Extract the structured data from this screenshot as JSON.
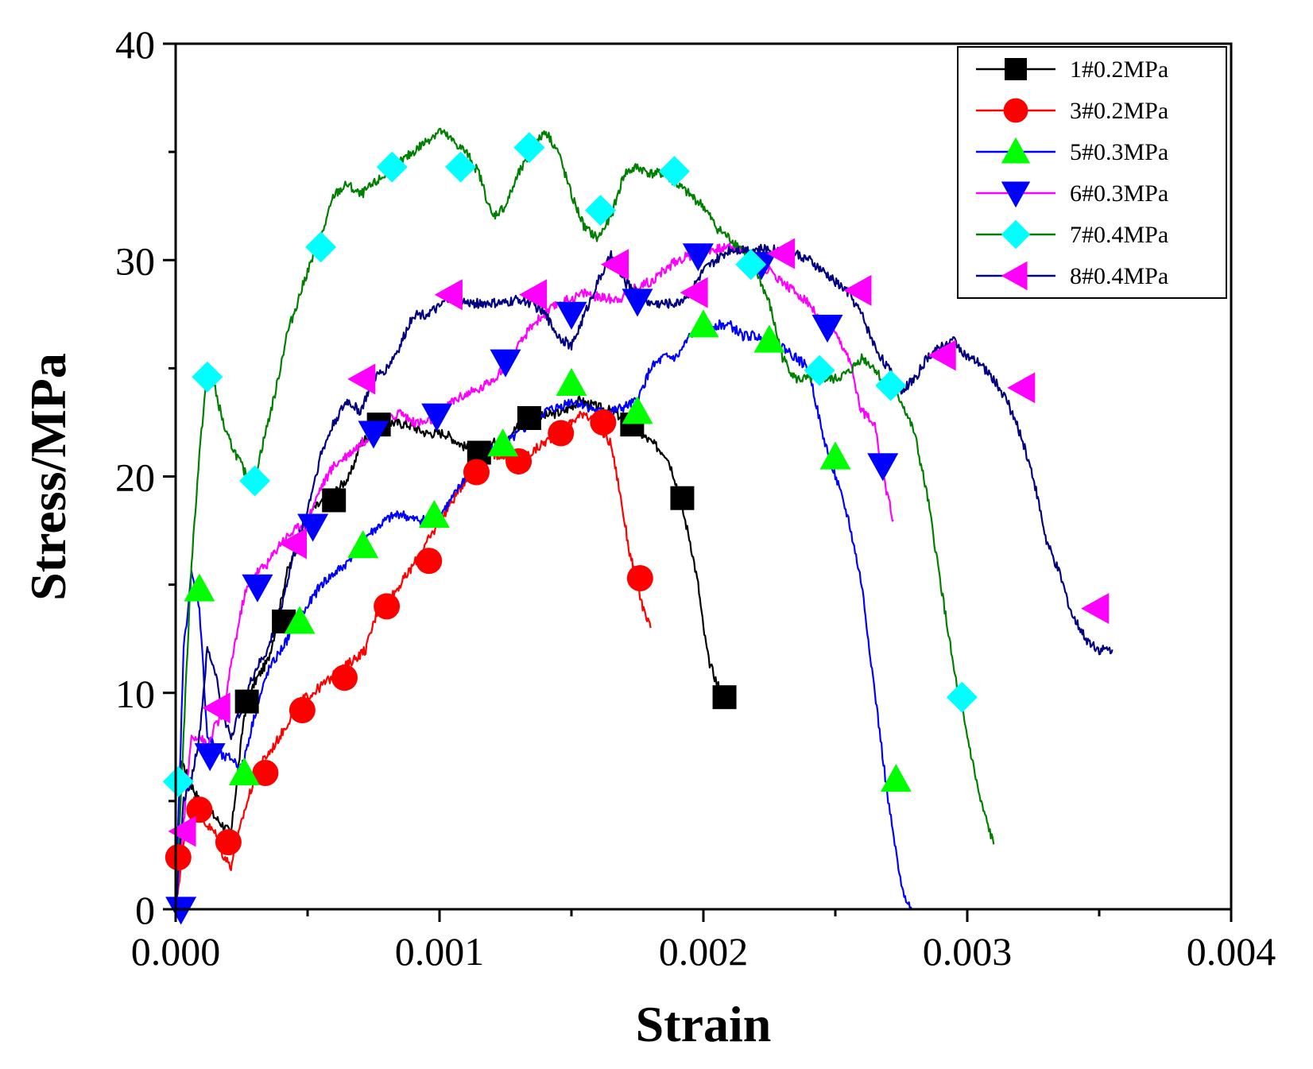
{
  "chart_data": {
    "type": "line",
    "title": "",
    "xlabel": "Strain",
    "ylabel": "Stress/MPa",
    "xlim": [
      0,
      0.004
    ],
    "ylim": [
      0,
      40
    ],
    "xticks": [
      0,
      0.001,
      0.002,
      0.003,
      0.004
    ],
    "xtick_labels": [
      "0.000",
      "0.001",
      "0.002",
      "0.003",
      "0.004"
    ],
    "yticks": [
      0,
      10,
      20,
      30,
      40
    ],
    "ytick_labels": [
      "0",
      "10",
      "20",
      "30",
      "40"
    ],
    "grid": false,
    "legend_position": "top-right",
    "series": [
      {
        "name": "1#0.2MPa",
        "color": "#000000",
        "marker": "square",
        "x": [
          0,
          2e-05,
          5e-05,
          9e-05,
          0.00013,
          0.00017,
          0.00021,
          0.00026,
          0.0003,
          0.00035,
          0.00038,
          0.00042,
          0.00047,
          0.00052,
          0.00058,
          0.00062,
          0.00066,
          0.0007,
          0.00074,
          0.00078,
          0.00082,
          0.00088,
          0.00095,
          0.00102,
          0.00108,
          0.00114,
          0.0012,
          0.00127,
          0.00133,
          0.0014,
          0.00147,
          0.00153,
          0.0016,
          0.00166,
          0.00171,
          0.00176,
          0.00181,
          0.00186,
          0.00189,
          0.00192,
          0.00195,
          0.00198,
          0.002,
          0.00202,
          0.00205,
          0.00207,
          0.00209
        ],
        "y": [
          0,
          7,
          6,
          5,
          4.5,
          4,
          3.5,
          9,
          10.5,
          11.5,
          13,
          15.5,
          17,
          18.5,
          19,
          19.5,
          20,
          21.5,
          22,
          22.3,
          22.5,
          22.4,
          22,
          22,
          21.5,
          21,
          21.5,
          22,
          22.7,
          22.8,
          23,
          23.5,
          23.2,
          23,
          22.5,
          22,
          21.5,
          21,
          20,
          18.5,
          17,
          15,
          13,
          11.5,
          10.5,
          10,
          9.5
        ],
        "marker_x": [
          0.00027,
          0.00041,
          0.0006,
          0.00077,
          0.00115,
          0.00134,
          0.00173,
          0.00192,
          0.00208
        ],
        "marker_y": [
          9.6,
          13.3,
          18.9,
          22.4,
          21.1,
          22.7,
          22.4,
          19.0,
          9.8
        ]
      },
      {
        "name": "3#0.2MPa",
        "color": "#ff0000",
        "marker": "circle",
        "x": [
          0,
          3e-05,
          7e-05,
          0.00011,
          0.00015,
          0.00018,
          0.00021,
          0.00026,
          0.00031,
          0.00037,
          0.00042,
          0.00046,
          0.00052,
          0.00057,
          0.00062,
          0.00067,
          0.00072,
          0.00077,
          0.00082,
          0.00088,
          0.00093,
          0.00098,
          0.00103,
          0.00108,
          0.00113,
          0.00118,
          0.00124,
          0.00129,
          0.00134,
          0.00139,
          0.00145,
          0.0015,
          0.00155,
          0.0016,
          0.00165,
          0.00168,
          0.0017,
          0.00172,
          0.00174,
          0.00176,
          0.00178,
          0.0018
        ],
        "y": [
          0,
          3,
          5,
          4,
          3.5,
          2.5,
          2,
          4.5,
          6.5,
          7.5,
          8.5,
          9.5,
          10,
          10.5,
          11,
          11.5,
          12,
          14,
          14.5,
          15.5,
          16.5,
          17.5,
          18.5,
          19.5,
          20.5,
          21,
          21,
          20.7,
          21,
          21.5,
          22,
          22.5,
          23,
          22.3,
          21.5,
          19.5,
          18,
          16.5,
          15.5,
          14.5,
          13.5,
          13
        ],
        "marker_x": [
          1e-05,
          9e-05,
          0.0002,
          0.00034,
          0.00048,
          0.00064,
          0.0008,
          0.00096,
          0.00114,
          0.0013,
          0.00146,
          0.00162,
          0.00176
        ],
        "marker_y": [
          2.4,
          4.6,
          3.1,
          6.3,
          9.2,
          10.7,
          14.0,
          16.1,
          20.2,
          20.7,
          22.0,
          22.5,
          15.3
        ]
      },
      {
        "name": "5#0.3MPa",
        "color": "#0000ff",
        "marker": "triangle-up",
        "x": [
          0,
          3e-05,
          6e-05,
          9e-05,
          0.00012,
          0.00015,
          0.00018,
          0.00021,
          0.00025,
          0.0003,
          0.00035,
          0.0004,
          0.00045,
          0.0005,
          0.00055,
          0.0006,
          0.00065,
          0.0007,
          0.00075,
          0.0008,
          0.00085,
          0.0009,
          0.00095,
          0.001,
          0.00105,
          0.0011,
          0.00115,
          0.0012,
          0.00125,
          0.0013,
          0.00135,
          0.0014,
          0.00145,
          0.0015,
          0.00155,
          0.0016,
          0.00165,
          0.0017,
          0.00175,
          0.0018,
          0.00185,
          0.0019,
          0.00195,
          0.002,
          0.00205,
          0.0021,
          0.00215,
          0.0022,
          0.00225,
          0.0023,
          0.00235,
          0.0024,
          0.00245,
          0.0025,
          0.00255,
          0.0026,
          0.00265,
          0.0027,
          0.00275,
          0.00279
        ],
        "y": [
          0,
          12,
          15.5,
          14,
          8,
          7.5,
          7,
          7,
          6.5,
          9,
          11,
          12,
          13,
          14,
          15,
          15.5,
          16,
          17,
          17.5,
          18,
          18.3,
          18,
          18,
          18.2,
          19,
          20,
          21,
          21.5,
          21.5,
          22,
          22.5,
          23,
          23.2,
          23.5,
          23.3,
          23,
          23,
          23.2,
          23.5,
          25,
          25.5,
          25.5,
          26.5,
          27,
          27,
          27,
          26.5,
          26.5,
          26,
          26,
          25.5,
          25,
          22,
          20,
          18,
          15,
          10,
          5,
          1,
          0
        ],
        "marker_x": [
          9e-05,
          0.00026,
          0.00047,
          0.00071,
          0.00098,
          0.00124,
          0.0015,
          0.00175,
          0.002,
          0.00225,
          0.0025,
          0.00273
        ],
        "marker_y": [
          14.8,
          6.3,
          13.3,
          16.8,
          18.2,
          21.5,
          24.3,
          23.0,
          27.0,
          26.3,
          20.9,
          6.0
        ]
      },
      {
        "name": "6#0.3MPa",
        "color": "#ff00ff",
        "marker": "triangle-down",
        "x": [
          0,
          3e-05,
          6e-05,
          9e-05,
          0.00012,
          0.00015,
          0.00018,
          0.00022,
          0.00026,
          0.0003,
          0.00035,
          0.0004,
          0.00045,
          0.0005,
          0.00055,
          0.0006,
          0.00065,
          0.0007,
          0.00075,
          0.0008,
          0.00085,
          0.0009,
          0.00095,
          0.001,
          0.00105,
          0.0011,
          0.00115,
          0.0012,
          0.00125,
          0.0013,
          0.00135,
          0.0014,
          0.00145,
          0.0015,
          0.00155,
          0.0016,
          0.00165,
          0.0017,
          0.00175,
          0.0018,
          0.00185,
          0.0019,
          0.00195,
          0.002,
          0.00205,
          0.0021,
          0.00215,
          0.0022,
          0.00225,
          0.0023,
          0.00235,
          0.0024,
          0.00245,
          0.0025,
          0.00255,
          0.0026,
          0.00265,
          0.00268,
          0.0027,
          0.00272
        ],
        "y": [
          0,
          4,
          8,
          8,
          7.5,
          8.5,
          9,
          12,
          14.5,
          15.5,
          16,
          17,
          17.5,
          18,
          19.5,
          20.5,
          21,
          21.5,
          22,
          22.5,
          23,
          22.5,
          22.5,
          22.8,
          23.5,
          23.8,
          24,
          24.5,
          25,
          26,
          27,
          27.5,
          28,
          28.2,
          28.5,
          28.3,
          28.2,
          28.3,
          28.8,
          29,
          29.5,
          30,
          30.2,
          30.5,
          30.5,
          30.6,
          30.5,
          30,
          29.5,
          29,
          28.5,
          28,
          27,
          26.5,
          25.5,
          23,
          22.5,
          20,
          19,
          18
        ],
        "marker_x": [
          2e-05,
          0.00013,
          0.00031,
          0.00052,
          0.00075,
          0.00099,
          0.00125,
          0.0015,
          0.00175,
          0.00198,
          0.00222,
          0.00247,
          0.00268
        ],
        "marker_y": [
          0.0,
          7.1,
          14.9,
          17.7,
          22.0,
          22.8,
          25.3,
          27.5,
          28.1,
          30.2,
          29.8,
          26.9,
          20.5
        ]
      },
      {
        "name": "7#0.4MPa",
        "color": "#008000",
        "marker": "diamond",
        "x": [
          0,
          3e-05,
          6e-05,
          9e-05,
          0.00012,
          0.00015,
          0.00019,
          0.00023,
          0.00027,
          0.0003,
          0.00034,
          0.00038,
          0.00042,
          0.00046,
          0.0005,
          0.00055,
          0.0006,
          0.00065,
          0.0007,
          0.00075,
          0.0008,
          0.00085,
          0.0009,
          0.00095,
          0.001,
          0.00105,
          0.0011,
          0.00115,
          0.0012,
          0.00125,
          0.0013,
          0.00135,
          0.0014,
          0.00145,
          0.0015,
          0.00155,
          0.0016,
          0.00165,
          0.0017,
          0.00175,
          0.0018,
          0.00185,
          0.0019,
          0.00195,
          0.002,
          0.00205,
          0.0021,
          0.00215,
          0.0022,
          0.00225,
          0.0023,
          0.00235,
          0.0024,
          0.00245,
          0.0025,
          0.00255,
          0.0026,
          0.00265,
          0.0027,
          0.00275,
          0.0028,
          0.00285,
          0.0029,
          0.00295,
          0.003,
          0.00305,
          0.0031
        ],
        "y": [
          0,
          8,
          16,
          21,
          25,
          24,
          22,
          21,
          20,
          20,
          22,
          24,
          26.5,
          28,
          29.5,
          31,
          33,
          33.5,
          33,
          33.5,
          34,
          34.5,
          35,
          35.5,
          36,
          35.5,
          35,
          34,
          32,
          32.5,
          34,
          35,
          36,
          35,
          33,
          31.5,
          31,
          32,
          34,
          34.3,
          34,
          34,
          33.5,
          33,
          32.5,
          31.5,
          31,
          30.5,
          29.5,
          28,
          25.5,
          24.5,
          24.5,
          24.5,
          24.5,
          24.8,
          25.5,
          25,
          24,
          23.5,
          22,
          19,
          15,
          11,
          8,
          5,
          3
        ],
        "marker_x": [
          1e-05,
          0.00012,
          0.0003,
          0.00055,
          0.00082,
          0.00108,
          0.00134,
          0.00161,
          0.00189,
          0.00218,
          0.00244,
          0.00271,
          0.00298
        ],
        "marker_y": [
          5.9,
          24.6,
          19.8,
          30.6,
          34.3,
          34.3,
          35.2,
          32.3,
          34.1,
          29.8,
          24.9,
          24.2,
          9.8
        ]
      },
      {
        "name": "8#0.4MPa",
        "color": "#000080",
        "marker": "triangle-left",
        "x": [
          0,
          3e-05,
          6e-05,
          9e-05,
          0.00012,
          0.00015,
          0.00018,
          0.00021,
          0.00024,
          0.00027,
          0.0003,
          0.00035,
          0.0004,
          0.00045,
          0.0005,
          0.00055,
          0.0006,
          0.00065,
          0.0007,
          0.00075,
          0.0008,
          0.00085,
          0.0009,
          0.00095,
          0.001,
          0.00105,
          0.0011,
          0.00115,
          0.0012,
          0.00125,
          0.0013,
          0.00135,
          0.0014,
          0.00145,
          0.0015,
          0.00155,
          0.0016,
          0.00165,
          0.0017,
          0.00175,
          0.0018,
          0.00185,
          0.0019,
          0.00195,
          0.002,
          0.00205,
          0.0021,
          0.00215,
          0.0022,
          0.00225,
          0.0023,
          0.00235,
          0.0024,
          0.00245,
          0.0025,
          0.00255,
          0.0026,
          0.00265,
          0.0027,
          0.00275,
          0.0028,
          0.00285,
          0.0029,
          0.00295,
          0.003,
          0.00305,
          0.0031,
          0.00315,
          0.0032,
          0.00325,
          0.0033,
          0.00335,
          0.0034,
          0.00345,
          0.0035,
          0.00355
        ],
        "y": [
          0,
          5,
          6,
          8,
          12,
          11,
          9,
          8,
          9,
          10,
          11,
          12,
          14,
          16.5,
          18.5,
          21,
          22.5,
          23.5,
          23,
          24.5,
          25,
          26,
          27.5,
          27.5,
          27.8,
          28.5,
          28,
          28,
          28,
          28,
          28.2,
          28,
          27.5,
          26.5,
          26,
          27.5,
          29,
          30.2,
          29,
          28.5,
          28,
          28,
          28,
          28.5,
          29.5,
          30,
          30.5,
          30.5,
          30.5,
          30.5,
          30.5,
          30.3,
          30,
          29.5,
          29,
          28.5,
          27.5,
          26,
          25,
          24,
          24.5,
          25.5,
          26,
          26.3,
          25.5,
          25.2,
          24.5,
          23.5,
          22,
          20,
          17,
          15.5,
          13.5,
          12.5,
          12,
          12
        ],
        "marker_x": [
          3e-05,
          0.00016,
          0.00045,
          0.00071,
          0.00104,
          0.00136,
          0.00167,
          0.00197,
          0.0023,
          0.00259,
          0.00291,
          0.00321,
          0.00349
        ],
        "marker_y": [
          3.6,
          9.3,
          16.9,
          24.5,
          28.4,
          28.4,
          29.8,
          28.5,
          30.3,
          28.6,
          25.6,
          24.1,
          13.9
        ]
      }
    ]
  }
}
